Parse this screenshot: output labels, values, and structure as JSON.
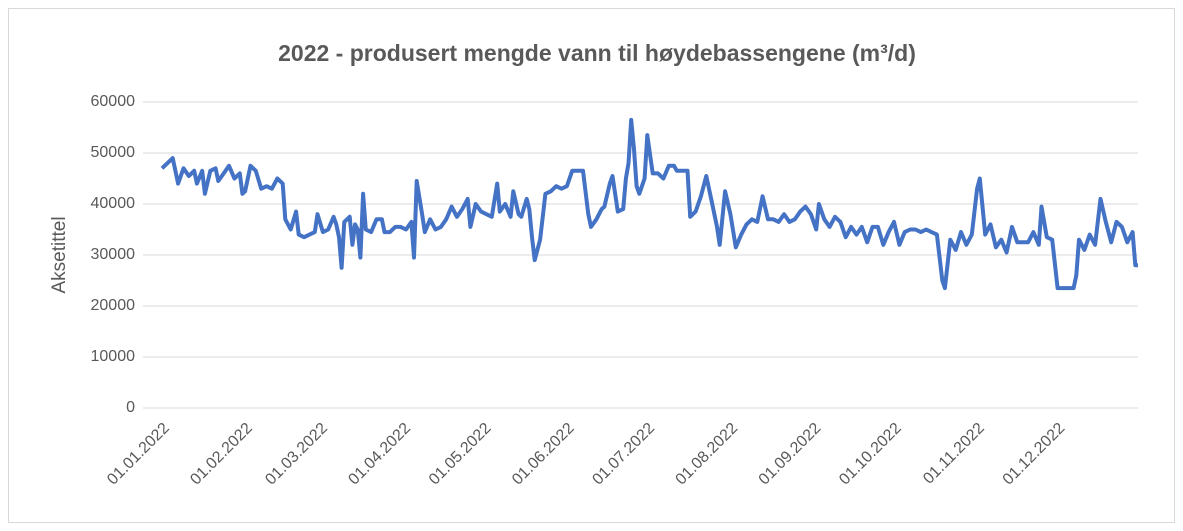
{
  "chart_data": {
    "type": "line",
    "title": "2022 - produsert mengde vann til høydebassengene (m³/d)",
    "y_label": "Aksetittel",
    "x": [
      "01.01.2022",
      "03.01.2022",
      "05.01.2022",
      "07.01.2022",
      "09.01.2022",
      "11.01.2022",
      "13.01.2022",
      "14.01.2022",
      "16.01.2022",
      "17.01.2022",
      "19.01.2022",
      "21.01.2022",
      "22.01.2022",
      "24.01.2022",
      "26.01.2022",
      "28.01.2022",
      "30.01.2022",
      "31.01.2022",
      "01.02.2022",
      "03.02.2022",
      "05.02.2022",
      "07.02.2022",
      "09.02.2022",
      "11.02.2022",
      "13.02.2022",
      "15.02.2022",
      "16.02.2022",
      "18.02.2022",
      "20.02.2022",
      "21.02.2022",
      "23.02.2022",
      "25.02.2022",
      "27.02.2022",
      "28.02.2022",
      "02.03.2022",
      "04.03.2022",
      "06.03.2022",
      "07.03.2022",
      "08.03.2022",
      "09.03.2022",
      "10.03.2022",
      "12.03.2022",
      "13.03.2022",
      "14.03.2022",
      "15.03.2022",
      "16.03.2022",
      "17.03.2022",
      "18.03.2022",
      "20.03.2022",
      "22.03.2022",
      "24.03.2022",
      "25.03.2022",
      "27.03.2022",
      "29.03.2022",
      "31.03.2022",
      "02.04.2022",
      "04.04.2022",
      "05.04.2022",
      "06.04.2022",
      "08.04.2022",
      "09.04.2022",
      "11.04.2022",
      "13.04.2022",
      "15.04.2022",
      "17.04.2022",
      "19.04.2022",
      "21.04.2022",
      "23.04.2022",
      "25.04.2022",
      "26.04.2022",
      "28.04.2022",
      "30.04.2022",
      "02.05.2022",
      "04.05.2022",
      "06.05.2022",
      "07.05.2022",
      "09.05.2022",
      "11.05.2022",
      "12.05.2022",
      "14.05.2022",
      "15.05.2022",
      "17.05.2022",
      "18.05.2022",
      "19.05.2022",
      "20.05.2022",
      "22.05.2022",
      "24.05.2022",
      "26.05.2022",
      "28.05.2022",
      "30.05.2022",
      "01.06.2022",
      "03.06.2022",
      "05.06.2022",
      "07.06.2022",
      "09.06.2022",
      "10.06.2022",
      "12.06.2022",
      "14.06.2022",
      "15.06.2022",
      "17.06.2022",
      "18.06.2022",
      "20.06.2022",
      "22.06.2022",
      "23.06.2022",
      "24.06.2022",
      "25.06.2022",
      "26.06.2022",
      "27.06.2022",
      "28.06.2022",
      "30.06.2022",
      "01.07.2022",
      "03.07.2022",
      "05.07.2022",
      "07.07.2022",
      "09.07.2022",
      "11.07.2022",
      "12.07.2022",
      "14.07.2022",
      "16.07.2022",
      "17.07.2022",
      "19.07.2022",
      "21.07.2022",
      "23.07.2022",
      "25.07.2022",
      "27.07.2022",
      "28.07.2022",
      "30.07.2022",
      "01.08.2022",
      "03.08.2022",
      "05.08.2022",
      "07.08.2022",
      "09.08.2022",
      "11.08.2022",
      "13.08.2022",
      "15.08.2022",
      "17.08.2022",
      "19.08.2022",
      "21.08.2022",
      "23.08.2022",
      "25.08.2022",
      "27.08.2022",
      "29.08.2022",
      "31.08.2022",
      "02.09.2022",
      "03.09.2022",
      "05.09.2022",
      "07.09.2022",
      "09.09.2022",
      "11.09.2022",
      "13.09.2022",
      "15.09.2022",
      "17.09.2022",
      "19.09.2022",
      "21.09.2022",
      "23.09.2022",
      "25.09.2022",
      "27.09.2022",
      "29.09.2022",
      "01.10.2022",
      "03.10.2022",
      "05.10.2022",
      "07.10.2022",
      "09.10.2022",
      "11.10.2022",
      "13.10.2022",
      "15.10.2022",
      "17.10.2022",
      "19.10.2022",
      "20.10.2022",
      "22.10.2022",
      "24.10.2022",
      "26.10.2022",
      "28.10.2022",
      "30.10.2022",
      "01.11.2022",
      "02.11.2022",
      "04.11.2022",
      "06.11.2022",
      "08.11.2022",
      "10.11.2022",
      "12.11.2022",
      "14.11.2022",
      "16.11.2022",
      "18.11.2022",
      "20.11.2022",
      "22.11.2022",
      "24.11.2022",
      "25.11.2022",
      "27.11.2022",
      "29.11.2022",
      "01.12.2022",
      "03.12.2022",
      "05.12.2022",
      "07.12.2022",
      "08.12.2022",
      "09.12.2022",
      "11.12.2022",
      "13.12.2022",
      "15.12.2022",
      "17.12.2022",
      "19.12.2022",
      "21.12.2022",
      "23.12.2022",
      "25.12.2022",
      "27.12.2022",
      "29.12.2022",
      "30.12.2022",
      "31.12.2022"
    ],
    "series": [
      {
        "color": "#4472c4",
        "values": [
          47000,
          48000,
          49000,
          44000,
          47000,
          45500,
          46500,
          44000,
          46500,
          42000,
          46500,
          47000,
          44500,
          46000,
          47500,
          45000,
          46000,
          42000,
          42500,
          47500,
          46500,
          43000,
          43500,
          43000,
          45000,
          44000,
          37000,
          35000,
          38500,
          34000,
          33500,
          34000,
          34500,
          38000,
          34500,
          35000,
          37500,
          36000,
          33500,
          27500,
          36500,
          37500,
          32000,
          36000,
          35000,
          29500,
          42000,
          35000,
          34500,
          37000,
          37000,
          34500,
          34500,
          35500,
          35500,
          35000,
          36500,
          29500,
          44500,
          38000,
          34500,
          37000,
          35000,
          35500,
          37000,
          39500,
          37500,
          39000,
          41000,
          35500,
          40000,
          38500,
          38000,
          37500,
          44000,
          38500,
          40000,
          37500,
          42500,
          38000,
          37500,
          41000,
          39000,
          33500,
          29000,
          33000,
          42000,
          42500,
          43500,
          43000,
          43500,
          46500,
          46500,
          46500,
          38000,
          35500,
          37000,
          39000,
          39500,
          44000,
          45500,
          38500,
          39000,
          45000,
          48000,
          56500,
          51000,
          43500,
          42000,
          45000,
          53500,
          46000,
          46000,
          45000,
          47500,
          47500,
          46500,
          46500,
          46500,
          37500,
          38500,
          41500,
          45500,
          40500,
          35500,
          32000,
          42500,
          38000,
          31500,
          34000,
          36000,
          37000,
          36500,
          41500,
          37000,
          37000,
          36500,
          38000,
          36500,
          37000,
          38500,
          39500,
          38000,
          35000,
          40000,
          37000,
          35500,
          37500,
          36500,
          33500,
          35500,
          34000,
          35500,
          32500,
          35500,
          35500,
          32000,
          34500,
          36500,
          32000,
          34500,
          35000,
          35000,
          34500,
          35000,
          34500,
          34000,
          25000,
          23500,
          33000,
          31000,
          34500,
          32000,
          34000,
          43000,
          45000,
          34000,
          36000,
          31500,
          33000,
          30500,
          35500,
          32500,
          32500,
          32500,
          34500,
          32000,
          39500,
          33500,
          33000,
          23500,
          23500,
          23500,
          23500,
          26000,
          33000,
          31000,
          34000,
          32000,
          41000,
          36500,
          32500,
          36500,
          35500,
          32500,
          34500,
          28000,
          28000
        ]
      }
    ],
    "xlim": [
      "01.01.2022",
      "31.12.2022"
    ],
    "xticks": [
      "01.01.2022",
      "01.02.2022",
      "01.03.2022",
      "01.04.2022",
      "01.05.2022",
      "01.06.2022",
      "01.07.2022",
      "01.08.2022",
      "01.09.2022",
      "01.10.2022",
      "01.11.2022",
      "01.12.2022"
    ],
    "ylim": [
      0,
      60000
    ],
    "yticks": [
      0,
      10000,
      20000,
      30000,
      40000,
      50000,
      60000
    ],
    "grid": true
  }
}
